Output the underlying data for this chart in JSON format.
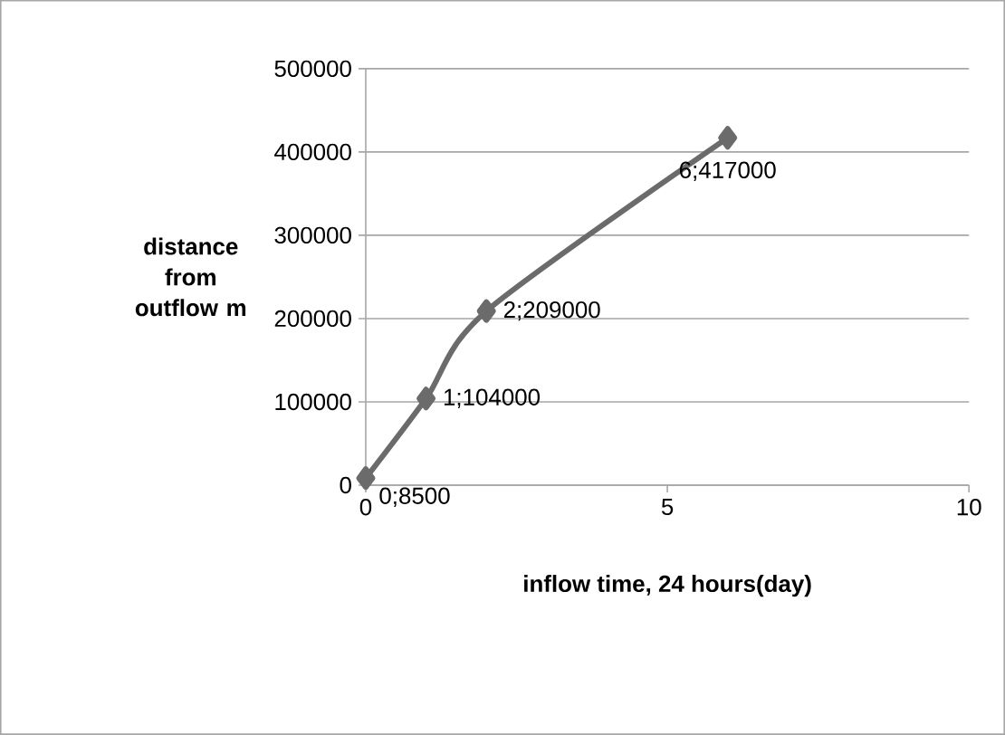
{
  "chart_data": {
    "type": "line",
    "xlabel": "inflow time, 24 hours(day)",
    "ylabel": "distance from outflow m",
    "x": [
      0,
      1,
      2,
      6
    ],
    "series": [
      {
        "color": "#6b6b6b",
        "values": [
          8500,
          104000,
          209000,
          417000
        ],
        "value_labels": [
          "0;8500",
          "1;104000",
          "2;209000",
          "6;417000"
        ]
      }
    ],
    "xlim": [
      0,
      10
    ],
    "xticks": [
      0,
      5,
      10
    ],
    "ylim": [
      0,
      500000
    ],
    "yticks": [
      0,
      100000,
      200000,
      300000,
      400000,
      500000
    ],
    "grid": "y",
    "marker": "diamond",
    "line_style": "solid"
  }
}
